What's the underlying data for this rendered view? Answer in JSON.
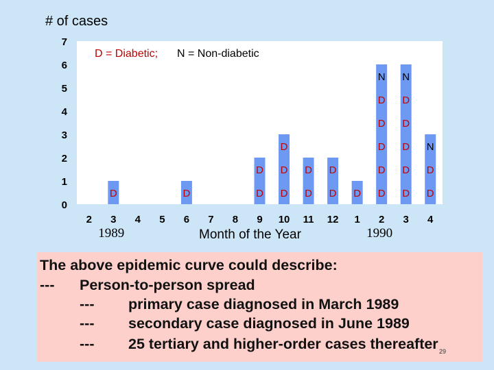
{
  "chart_data": {
    "type": "bar",
    "title": "",
    "ylabel": "# of cases",
    "xlabel": "Month of the Year",
    "ylim": [
      0,
      7
    ],
    "yticks": [
      "0",
      "1",
      "2",
      "3",
      "4",
      "5",
      "6",
      "7"
    ],
    "categories": [
      "2",
      "3",
      "4",
      "5",
      "6",
      "7",
      "8",
      "9",
      "10",
      "11",
      "12",
      "1",
      "2",
      "3",
      "4"
    ],
    "year_labels": [
      {
        "text": "1989",
        "category_index": 1
      },
      {
        "text": "1990",
        "category_index": 12
      }
    ],
    "values": [
      0,
      1,
      0,
      0,
      1,
      0,
      0,
      2,
      3,
      2,
      2,
      1,
      6,
      6,
      3
    ],
    "stacks": [
      [],
      [
        "D"
      ],
      [],
      [],
      [
        "D"
      ],
      [],
      [],
      [
        "D",
        "D"
      ],
      [
        "D",
        "D",
        "D"
      ],
      [
        "D",
        "D"
      ],
      [
        "D",
        "D"
      ],
      [
        "D"
      ],
      [
        "D",
        "D",
        "D",
        "D",
        "D",
        "N"
      ],
      [
        "D",
        "D",
        "D",
        "D",
        "D",
        "N"
      ],
      [
        "D",
        "D",
        "N"
      ]
    ],
    "legend": {
      "diabetic_code": "D = Diabetic;",
      "nondiabetic_code": "N = Non-diabetic"
    }
  },
  "colors": {
    "background": "#cde6f7",
    "plot_area": "#ffffff",
    "bar": "#6e99f2",
    "letter_D": "#c00000",
    "letter_N": "#000000",
    "legend_red": "#c00000",
    "caption_bg": "#fdd0cb"
  },
  "caption": {
    "line1": "The above epidemic curve could describe:",
    "line2_dash": "---",
    "line2_text": "Person-to-person spread",
    "line3_dash": "---",
    "line3_text": "primary case diagnosed in March 1989",
    "line4_dash": "---",
    "line4_text": "secondary case diagnosed in June 1989",
    "line5_dash": "---",
    "line5_text": "25 tertiary and higher-order cases thereafter"
  },
  "slide_number": "29"
}
